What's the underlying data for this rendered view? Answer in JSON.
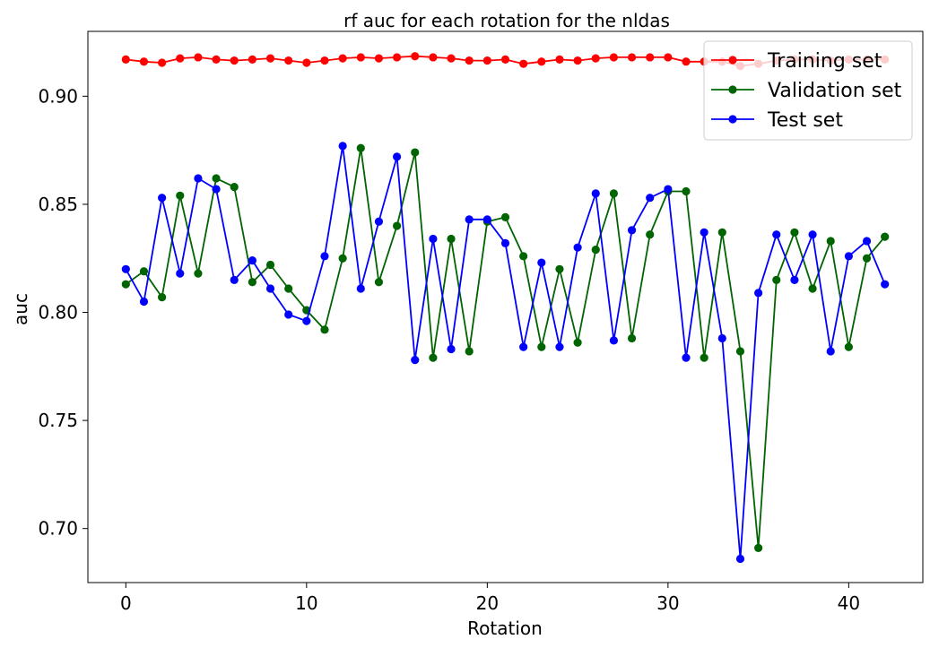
{
  "chart_data": {
    "type": "line",
    "title": "rf auc for each rotation for the nldas",
    "xlabel": "Rotation",
    "ylabel": "auc",
    "xlim": [
      -2.1,
      44.1
    ],
    "ylim": [
      0.675,
      0.93
    ],
    "xticks": [
      0,
      10,
      20,
      30,
      40
    ],
    "yticks": [
      0.7,
      0.75,
      0.8,
      0.85,
      0.9
    ],
    "xtick_labels": [
      "0",
      "10",
      "20",
      "30",
      "40"
    ],
    "ytick_labels": [
      "0.70",
      "0.75",
      "0.80",
      "0.85",
      "0.90"
    ],
    "grid": false,
    "legend_position": "top-right",
    "x": [
      0,
      1,
      2,
      3,
      4,
      5,
      6,
      7,
      8,
      9,
      10,
      11,
      12,
      13,
      14,
      15,
      16,
      17,
      18,
      19,
      20,
      21,
      22,
      23,
      24,
      25,
      26,
      27,
      28,
      29,
      30,
      31,
      32,
      33,
      34,
      35,
      36,
      37,
      38,
      39,
      40,
      41,
      42
    ],
    "series": [
      {
        "name": "Training set",
        "color": "#ff0000",
        "values": [
          0.917,
          0.916,
          0.9155,
          0.9175,
          0.918,
          0.917,
          0.9165,
          0.917,
          0.9175,
          0.9165,
          0.9155,
          0.9165,
          0.9175,
          0.918,
          0.9175,
          0.918,
          0.9185,
          0.918,
          0.9175,
          0.9165,
          0.9165,
          0.917,
          0.915,
          0.916,
          0.917,
          0.9165,
          0.9175,
          0.918,
          0.918,
          0.918,
          0.918,
          0.916,
          0.916,
          0.916,
          0.914,
          0.915,
          0.9165,
          0.917,
          0.917,
          0.9165,
          0.917,
          0.917,
          0.917
        ]
      },
      {
        "name": "Validation set",
        "color": "#006400",
        "values": [
          0.813,
          0.819,
          0.807,
          0.854,
          0.818,
          0.862,
          0.858,
          0.814,
          0.822,
          0.811,
          0.801,
          0.792,
          0.825,
          0.876,
          0.814,
          0.84,
          0.874,
          0.779,
          0.834,
          0.782,
          0.842,
          0.844,
          0.826,
          0.784,
          0.82,
          0.786,
          0.829,
          0.855,
          0.788,
          0.836,
          0.856,
          0.856,
          0.779,
          0.837,
          0.782,
          0.691,
          0.815,
          0.837,
          0.811,
          0.833,
          0.784,
          0.825,
          0.835
        ]
      },
      {
        "name": "Test set",
        "color": "#0000ff",
        "values": [
          0.82,
          0.805,
          0.853,
          0.818,
          0.862,
          0.857,
          0.815,
          0.824,
          0.811,
          0.799,
          0.796,
          0.826,
          0.877,
          0.811,
          0.842,
          0.872,
          0.778,
          0.834,
          0.783,
          0.843,
          0.843,
          0.832,
          0.784,
          0.823,
          0.784,
          0.83,
          0.855,
          0.787,
          0.838,
          0.853,
          0.857,
          0.779,
          0.837,
          0.788,
          0.686,
          0.809,
          0.836,
          0.815,
          0.836,
          0.782,
          0.826,
          0.833,
          0.813
        ]
      }
    ]
  }
}
